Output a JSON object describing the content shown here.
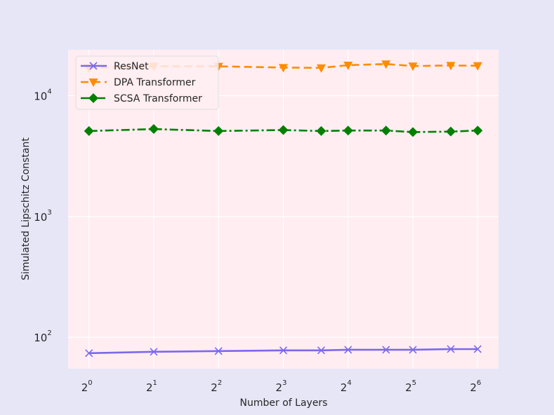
{
  "chart_data": {
    "type": "line",
    "xlabel": "Number of Layers",
    "ylabel": "Simulated Lipschitz Constant",
    "x_scale": "log2",
    "y_scale": "log10",
    "grid": true,
    "legend_position": "top-left",
    "xlim": [
      0.8,
      80
    ],
    "ylim": [
      55,
      24000
    ],
    "x_ticks": [
      {
        "value": 1,
        "base": "2",
        "exp": "0"
      },
      {
        "value": 2,
        "base": "2",
        "exp": "1"
      },
      {
        "value": 4,
        "base": "2",
        "exp": "2"
      },
      {
        "value": 8,
        "base": "2",
        "exp": "3"
      },
      {
        "value": 16,
        "base": "2",
        "exp": "4"
      },
      {
        "value": 32,
        "base": "2",
        "exp": "5"
      },
      {
        "value": 64,
        "base": "2",
        "exp": "6"
      }
    ],
    "y_ticks": [
      {
        "value": 100,
        "base": "10",
        "exp": "2"
      },
      {
        "value": 1000,
        "base": "10",
        "exp": "3"
      },
      {
        "value": 10000,
        "base": "10",
        "exp": "4"
      }
    ],
    "x": [
      1,
      2,
      4,
      8,
      12,
      16,
      24,
      32,
      48,
      64
    ],
    "series": [
      {
        "name": "ResNet",
        "color": "#7b68ee",
        "marker": "x",
        "linestyle": "solid",
        "values": [
          74,
          76,
          77,
          78,
          78,
          79,
          79,
          79,
          80,
          80
        ]
      },
      {
        "name": "DPA Transformer",
        "color": "#ff8c00",
        "marker": "triangle-down",
        "linestyle": "dashed",
        "values": [
          17000,
          17500,
          17500,
          17100,
          17000,
          17900,
          18300,
          17600,
          17800,
          17700
        ]
      },
      {
        "name": "SCSA Transformer",
        "color": "#008000",
        "marker": "diamond",
        "linestyle": "dashdot",
        "values": [
          5100,
          5300,
          5100,
          5200,
          5100,
          5150,
          5150,
          5000,
          5050,
          5150
        ]
      }
    ]
  }
}
